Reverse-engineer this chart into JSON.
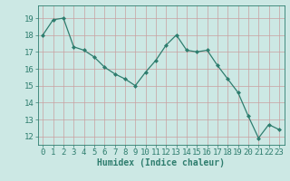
{
  "x": [
    0,
    1,
    2,
    3,
    4,
    5,
    6,
    7,
    8,
    9,
    10,
    11,
    12,
    13,
    14,
    15,
    16,
    17,
    18,
    19,
    20,
    21,
    22,
    23
  ],
  "y": [
    18.0,
    18.9,
    19.0,
    17.3,
    17.1,
    16.7,
    16.1,
    15.7,
    15.4,
    15.0,
    15.8,
    16.5,
    17.4,
    18.0,
    17.1,
    17.0,
    17.1,
    16.2,
    15.4,
    14.6,
    13.2,
    11.9,
    12.7,
    12.4
  ],
  "line_color": "#2e7d6e",
  "marker": "D",
  "marker_size": 2,
  "bg_color": "#cce8e4",
  "grid_color": "#c8a0a0",
  "xlabel": "Humidex (Indice chaleur)",
  "ylim": [
    11.5,
    19.75
  ],
  "xlim": [
    -0.5,
    23.5
  ],
  "yticks": [
    12,
    13,
    14,
    15,
    16,
    17,
    18,
    19
  ],
  "xticks": [
    0,
    1,
    2,
    3,
    4,
    5,
    6,
    7,
    8,
    9,
    10,
    11,
    12,
    13,
    14,
    15,
    16,
    17,
    18,
    19,
    20,
    21,
    22,
    23
  ],
  "xlabel_fontsize": 7,
  "tick_fontsize": 6.5
}
